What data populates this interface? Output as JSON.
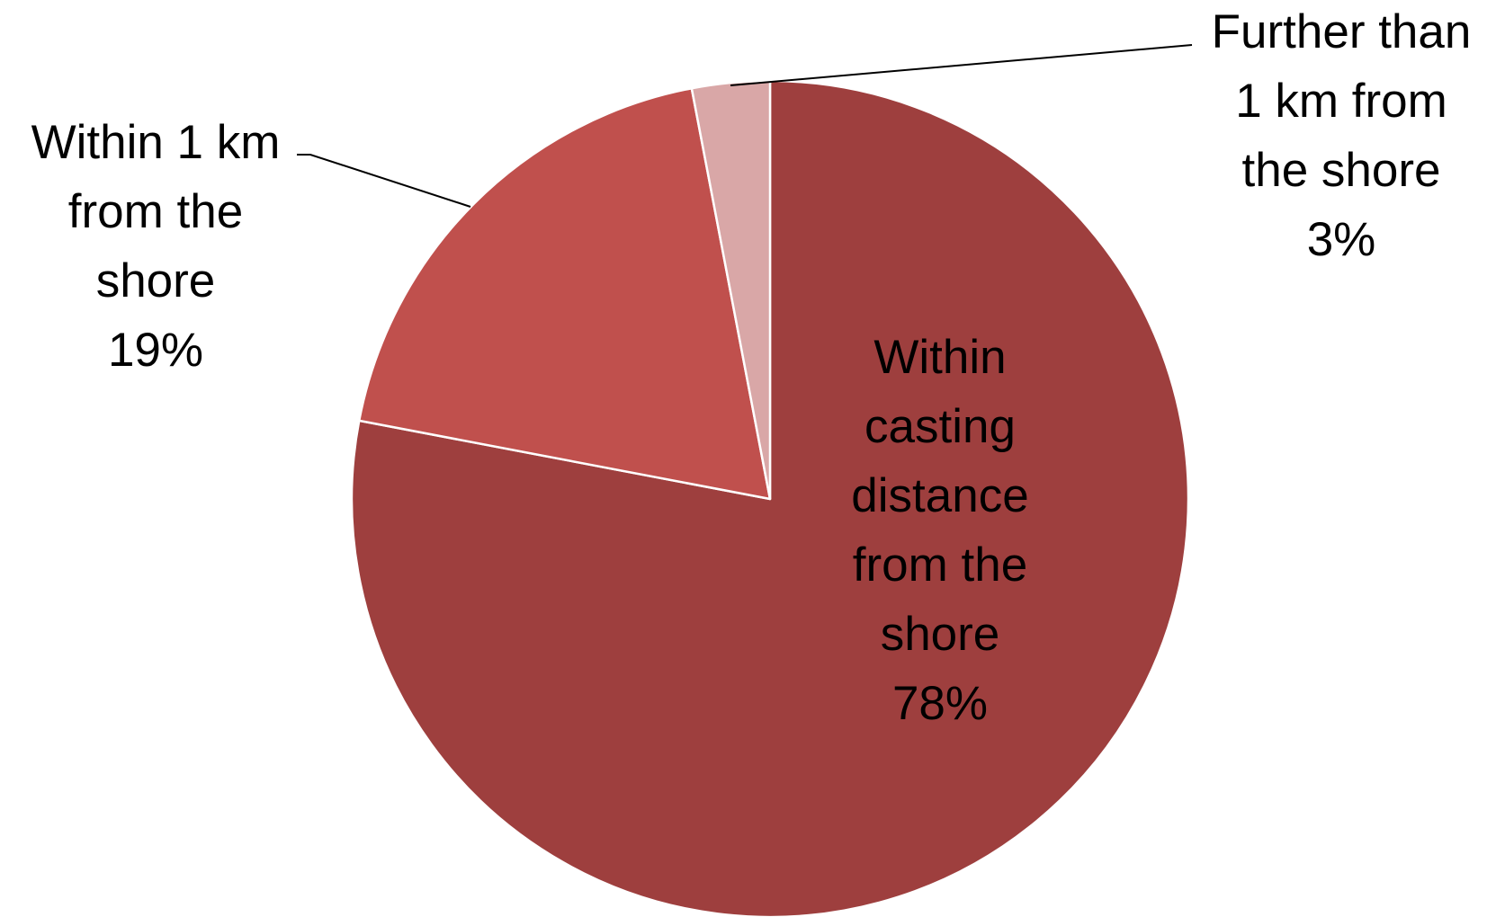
{
  "chart_data": {
    "type": "pie",
    "title": "",
    "start_angle_deg": 0,
    "direction": "clockwise",
    "slice_border_color": "#ffffff",
    "leader_line_color": "#000000",
    "slices": [
      {
        "label": "Within casting distance from the shore",
        "value": 78,
        "percent_label": "78%",
        "label_lines": [
          "Within",
          "casting",
          "distance",
          "from the",
          "shore"
        ],
        "color": "#9e3f3e",
        "label_position": "inside"
      },
      {
        "label": "Within 1 km from the shore",
        "value": 19,
        "percent_label": "19%",
        "label_lines": [
          "Within 1 km",
          "from the",
          "shore"
        ],
        "color": "#c0504d",
        "label_position": "outside-left"
      },
      {
        "label": "Further than 1 km from the shore",
        "value": 3,
        "percent_label": "3%",
        "label_lines": [
          "Further than",
          "1 km from",
          "the shore"
        ],
        "color": "#d9a7a7",
        "label_position": "outside-top-right"
      }
    ]
  }
}
